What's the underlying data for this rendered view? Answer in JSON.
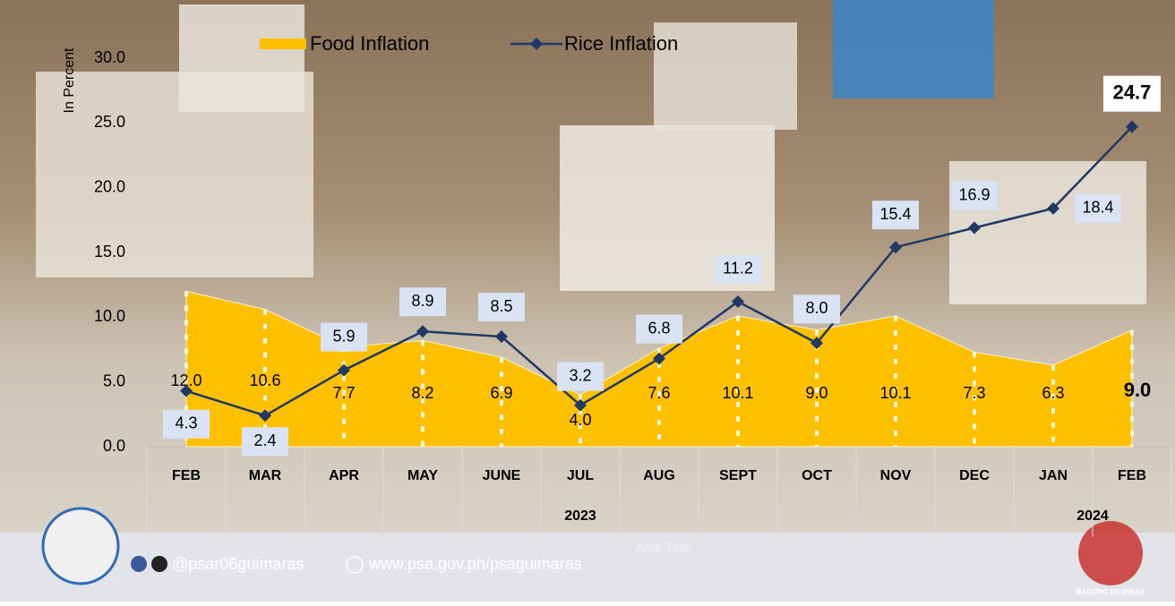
{
  "chart_data": {
    "type": "area-line",
    "y_axis_label": "In Percent",
    "x_axis_label": "Axis Title",
    "categories": [
      "FEB",
      "MAR",
      "APR",
      "MAY",
      "JUNE",
      "JUL",
      "AUG",
      "SEPT",
      "OCT",
      "NOV",
      "DEC",
      "JAN",
      "FEB"
    ],
    "groups": [
      "2023",
      "2024"
    ],
    "series": [
      {
        "name": "Food Inflation",
        "color": "#ffc000",
        "kind": "area",
        "values": [
          12.0,
          10.6,
          7.7,
          8.2,
          6.9,
          4.0,
          7.6,
          10.1,
          9.0,
          10.1,
          7.3,
          6.3,
          9.0
        ],
        "value_labels": [
          "12.0",
          "10.6",
          "7.7",
          "8.2",
          "6.9",
          "4.0",
          "7.6",
          "10.1",
          "9.0",
          "10.1",
          "7.3",
          "6.3",
          "9.0"
        ]
      },
      {
        "name": "Rice Inflation",
        "color": "#1f3864",
        "kind": "line",
        "values": [
          4.3,
          2.4,
          5.9,
          8.9,
          8.5,
          3.2,
          6.8,
          11.2,
          8.0,
          15.4,
          16.9,
          18.4,
          24.7
        ],
        "value_labels": [
          "4.3",
          "2.4",
          "5.9",
          "8.9",
          "8.5",
          "3.2",
          "6.8",
          "11.2",
          "8.0",
          "15.4",
          "16.9",
          "18.4",
          "24.7"
        ]
      }
    ],
    "ylim": [
      0,
      30
    ],
    "yticks": [
      {
        "value": 0,
        "label": "0.0"
      },
      {
        "value": 5,
        "label": "5.0"
      },
      {
        "value": 10,
        "label": "10.0"
      },
      {
        "value": 15,
        "label": "15.0"
      },
      {
        "value": 20,
        "label": "20.0"
      },
      {
        "value": 25,
        "label": "25.0"
      },
      {
        "value": 30,
        "label": "30.0"
      }
    ],
    "legend": "top"
  },
  "footer": {
    "social": "@psar06guimaras",
    "website": "www.psa.gov.ph/psaguimaras",
    "logo_text": "BAGONG PILIPINAS"
  }
}
